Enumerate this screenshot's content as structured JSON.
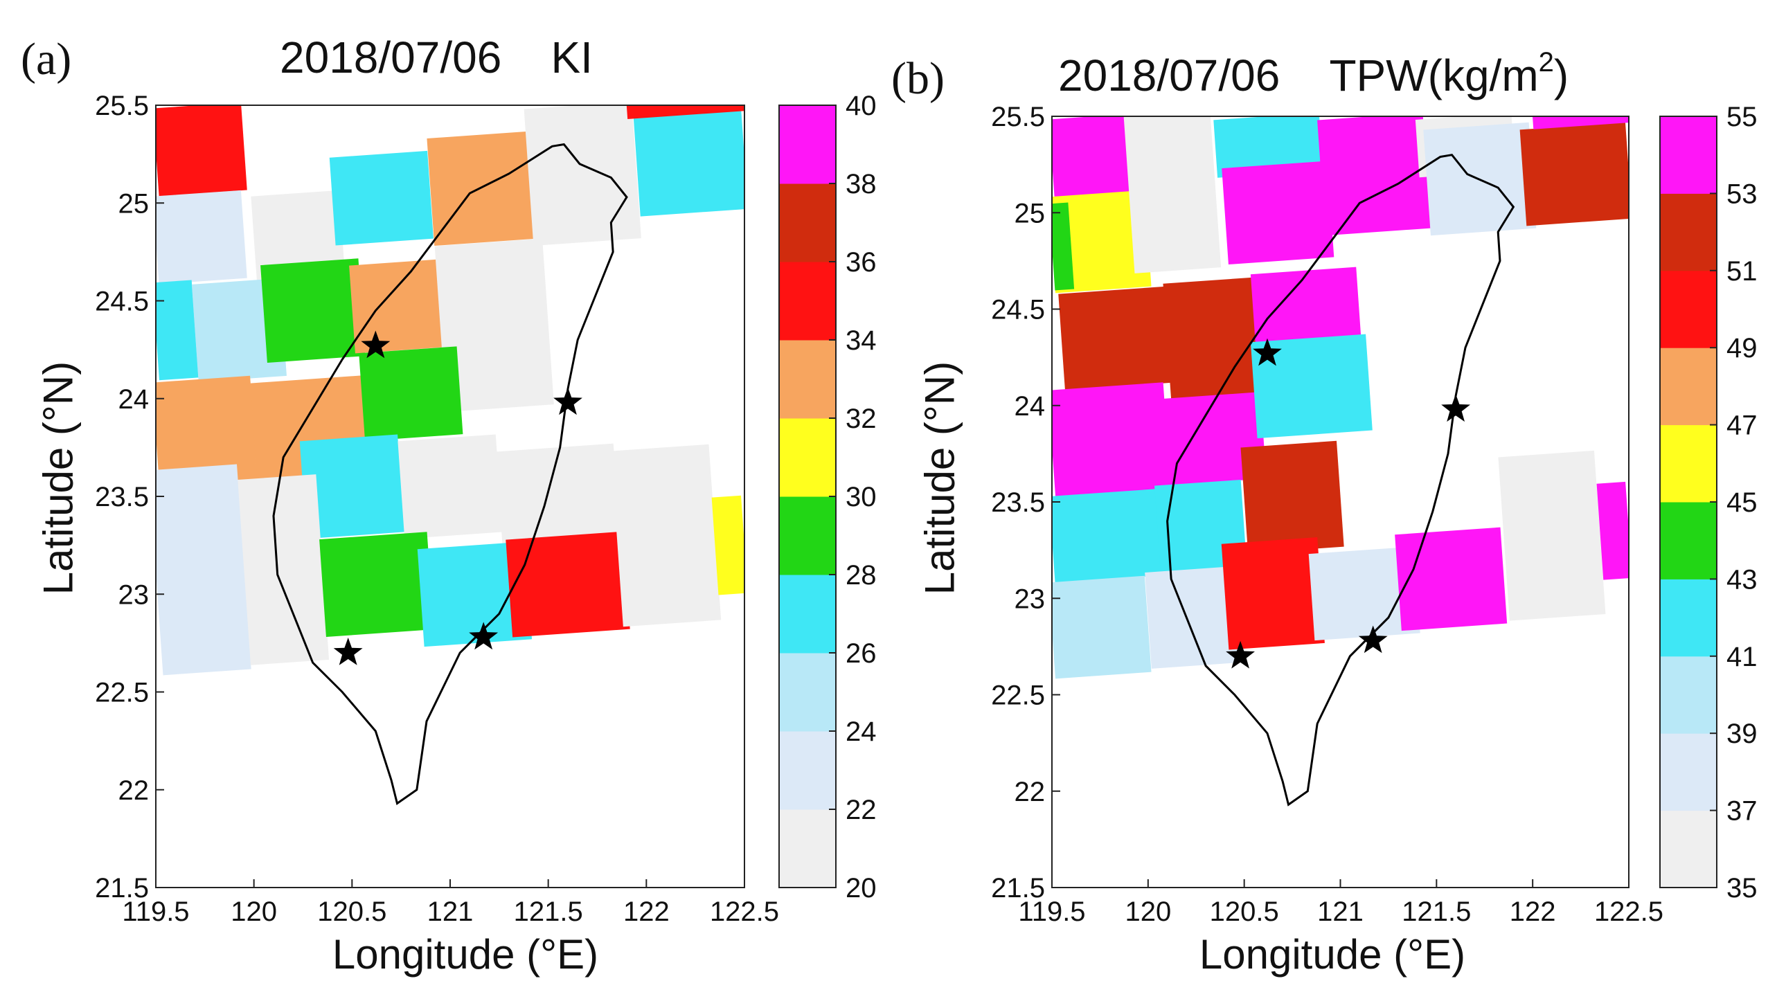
{
  "panels": [
    {
      "id": "a",
      "label": "(a)",
      "date": "2018/07/06",
      "variable": "KI",
      "unit_prefix": "",
      "unit_sup": "",
      "unit_suffix": "",
      "xlabel": "Longitude (°E)",
      "ylabel": "Latitude (°N)",
      "x_ticks": [
        "119.5",
        "120",
        "120.5",
        "121",
        "121.5",
        "122",
        "122.5"
      ],
      "y_ticks": [
        "21.5",
        "22",
        "22.5",
        "23",
        "23.5",
        "24",
        "24.5",
        "25",
        "25.5"
      ],
      "colorbar_ticks": [
        "20",
        "22",
        "24",
        "26",
        "28",
        "30",
        "32",
        "34",
        "36",
        "38",
        "40"
      ]
    },
    {
      "id": "b",
      "label": "(b)",
      "date": "2018/07/06",
      "variable": "TPW",
      "unit_prefix": "(kg/m",
      "unit_sup": "2",
      "unit_suffix": ")",
      "xlabel": "Longitude (°E)",
      "ylabel": "Latitude (°N)",
      "x_ticks": [
        "119.5",
        "120",
        "120.5",
        "121",
        "121.5",
        "122",
        "122.5"
      ],
      "y_ticks": [
        "21.5",
        "22",
        "22.5",
        "23",
        "23.5",
        "24",
        "24.5",
        "25",
        "25.5"
      ],
      "colorbar_ticks": [
        "35",
        "37",
        "39",
        "41",
        "43",
        "45",
        "47",
        "49",
        "51",
        "53",
        "55"
      ]
    }
  ],
  "chart_data": [
    {
      "type": "heatmap",
      "title": "2018/07/06 KI",
      "xlabel": "Longitude (°E)",
      "ylabel": "Latitude (°N)",
      "xlim": [
        119.5,
        122.5
      ],
      "ylim": [
        21.5,
        25.5
      ],
      "colorbar": {
        "range": [
          20,
          40
        ],
        "levels": [
          20,
          22,
          24,
          26,
          28,
          30,
          32,
          34,
          36,
          38,
          40
        ],
        "colors": [
          "#efefef",
          "#dce9f7",
          "#b8e8f7",
          "#3fe7f5",
          "#22d615",
          "#ffff1e",
          "#f7a55f",
          "#ff1212",
          "#d02c0e",
          "#ff16f7"
        ]
      },
      "cells": [
        {
          "lon": 119.5,
          "lat": 25.05,
          "w": 0.45,
          "h": 0.45,
          "value": 35
        },
        {
          "lon": 119.5,
          "lat": 24.6,
          "w": 0.45,
          "h": 0.45,
          "value": 23
        },
        {
          "lon": 120.0,
          "lat": 24.6,
          "w": 0.45,
          "h": 0.45,
          "value": 21
        },
        {
          "lon": 120.4,
          "lat": 24.8,
          "w": 0.5,
          "h": 0.45,
          "value": 27
        },
        {
          "lon": 120.9,
          "lat": 24.8,
          "w": 0.55,
          "h": 0.55,
          "value": 33
        },
        {
          "lon": 121.4,
          "lat": 24.8,
          "w": 0.55,
          "h": 0.7,
          "value": 21
        },
        {
          "lon": 121.95,
          "lat": 24.95,
          "w": 0.55,
          "h": 0.55,
          "value": 27
        },
        {
          "lon": 121.9,
          "lat": 25.45,
          "w": 0.6,
          "h": 0.1,
          "value": 35
        },
        {
          "lon": 119.5,
          "lat": 24.1,
          "w": 0.2,
          "h": 0.5,
          "value": 27
        },
        {
          "lon": 119.7,
          "lat": 24.1,
          "w": 0.45,
          "h": 0.5,
          "value": 25
        },
        {
          "lon": 120.05,
          "lat": 24.2,
          "w": 0.5,
          "h": 0.5,
          "value": 29
        },
        {
          "lon": 120.5,
          "lat": 24.25,
          "w": 0.55,
          "h": 0.45,
          "value": 33
        },
        {
          "lon": 120.95,
          "lat": 23.95,
          "w": 0.55,
          "h": 0.85,
          "value": 20.5
        },
        {
          "lon": 119.5,
          "lat": 23.55,
          "w": 0.5,
          "h": 0.55,
          "value": 33
        },
        {
          "lon": 120.0,
          "lat": 23.55,
          "w": 0.6,
          "h": 0.55,
          "value": 33
        },
        {
          "lon": 120.55,
          "lat": 23.8,
          "w": 0.5,
          "h": 0.45,
          "value": 29
        },
        {
          "lon": 120.25,
          "lat": 23.3,
          "w": 0.5,
          "h": 0.5,
          "value": 27
        },
        {
          "lon": 120.75,
          "lat": 23.3,
          "w": 0.5,
          "h": 0.5,
          "value": 20.5
        },
        {
          "lon": 121.25,
          "lat": 23.25,
          "w": 0.6,
          "h": 0.5,
          "value": 21
        },
        {
          "lon": 119.5,
          "lat": 22.6,
          "w": 0.45,
          "h": 1.05,
          "value": 23
        },
        {
          "lon": 119.95,
          "lat": 22.65,
          "w": 0.4,
          "h": 0.95,
          "value": 21
        },
        {
          "lon": 120.35,
          "lat": 22.8,
          "w": 0.55,
          "h": 0.5,
          "value": 29
        },
        {
          "lon": 120.85,
          "lat": 22.75,
          "w": 0.55,
          "h": 0.5,
          "value": 27
        },
        {
          "lon": 121.3,
          "lat": 22.8,
          "w": 0.6,
          "h": 0.5,
          "value": 35
        },
        {
          "lon": 121.85,
          "lat": 22.85,
          "w": 0.5,
          "h": 0.9,
          "value": 21
        },
        {
          "lon": 122.35,
          "lat": 23.0,
          "w": 0.15,
          "h": 0.5,
          "value": 31
        }
      ],
      "stations": [
        {
          "lon": 120.62,
          "lat": 24.27
        },
        {
          "lon": 121.6,
          "lat": 23.98
        },
        {
          "lon": 120.48,
          "lat": 22.7
        },
        {
          "lon": 121.17,
          "lat": 22.78
        }
      ]
    },
    {
      "type": "heatmap",
      "title": "2018/07/06 TPW(kg/m2)",
      "xlabel": "Longitude (°E)",
      "ylabel": "Latitude (°N)",
      "xlim": [
        119.5,
        122.5
      ],
      "ylim": [
        21.5,
        25.5
      ],
      "colorbar": {
        "range": [
          35,
          55
        ],
        "levels": [
          35,
          37,
          39,
          41,
          43,
          45,
          47,
          49,
          51,
          53,
          55
        ],
        "colors": [
          "#efefef",
          "#dce9f7",
          "#b8e8f7",
          "#3fe7f5",
          "#22d615",
          "#ffff1e",
          "#f7a55f",
          "#ff1212",
          "#d02c0e",
          "#ff16f7"
        ]
      },
      "cells": [
        {
          "lon": 119.5,
          "lat": 25.05,
          "w": 0.45,
          "h": 0.45,
          "value": 54
        },
        {
          "lon": 119.5,
          "lat": 24.6,
          "w": 0.5,
          "h": 0.5,
          "value": 46
        },
        {
          "lon": 119.9,
          "lat": 24.7,
          "w": 0.45,
          "h": 0.85,
          "value": 36
        },
        {
          "lon": 120.35,
          "lat": 25.2,
          "w": 0.55,
          "h": 0.3,
          "value": 42
        },
        {
          "lon": 120.9,
          "lat": 24.9,
          "w": 0.55,
          "h": 0.6,
          "value": 54
        },
        {
          "lon": 120.4,
          "lat": 24.75,
          "w": 0.55,
          "h": 0.5,
          "value": 54
        },
        {
          "lon": 121.4,
          "lat": 25.2,
          "w": 0.5,
          "h": 0.3,
          "value": 36
        },
        {
          "lon": 121.45,
          "lat": 24.9,
          "w": 0.55,
          "h": 0.55,
          "value": 38
        },
        {
          "lon": 121.95,
          "lat": 24.95,
          "w": 0.55,
          "h": 0.5,
          "value": 52
        },
        {
          "lon": 122.0,
          "lat": 25.45,
          "w": 0.5,
          "h": 0.1,
          "value": 54
        },
        {
          "lon": 119.5,
          "lat": 24.6,
          "w": 0.1,
          "h": 0.45,
          "value": 44
        },
        {
          "lon": 119.55,
          "lat": 24.1,
          "w": 0.6,
          "h": 0.5,
          "value": 52
        },
        {
          "lon": 120.1,
          "lat": 24.0,
          "w": 0.5,
          "h": 0.65,
          "value": 52
        },
        {
          "lon": 120.55,
          "lat": 24.2,
          "w": 0.55,
          "h": 0.5,
          "value": 54
        },
        {
          "lon": 119.5,
          "lat": 23.5,
          "w": 0.6,
          "h": 0.6,
          "value": 54
        },
        {
          "lon": 120.0,
          "lat": 23.6,
          "w": 0.6,
          "h": 0.45,
          "value": 54
        },
        {
          "lon": 120.55,
          "lat": 23.85,
          "w": 0.6,
          "h": 0.5,
          "value": 42
        },
        {
          "lon": 119.5,
          "lat": 23.1,
          "w": 0.6,
          "h": 0.45,
          "value": 42
        },
        {
          "lon": 120.05,
          "lat": 23.1,
          "w": 0.45,
          "h": 0.5,
          "value": 42
        },
        {
          "lon": 120.5,
          "lat": 23.25,
          "w": 0.5,
          "h": 0.55,
          "value": 52
        },
        {
          "lon": 119.5,
          "lat": 22.6,
          "w": 0.5,
          "h": 0.5,
          "value": 40
        },
        {
          "lon": 120.0,
          "lat": 22.65,
          "w": 0.45,
          "h": 0.5,
          "value": 38
        },
        {
          "lon": 120.4,
          "lat": 22.75,
          "w": 0.5,
          "h": 0.55,
          "value": 50
        },
        {
          "lon": 120.85,
          "lat": 22.8,
          "w": 0.55,
          "h": 0.45,
          "value": 38
        },
        {
          "lon": 121.3,
          "lat": 22.85,
          "w": 0.55,
          "h": 0.5,
          "value": 54
        },
        {
          "lon": 121.85,
          "lat": 22.9,
          "w": 0.5,
          "h": 0.85,
          "value": 36
        },
        {
          "lon": 122.35,
          "lat": 23.1,
          "w": 0.15,
          "h": 0.5,
          "value": 54
        }
      ],
      "stations": [
        {
          "lon": 120.62,
          "lat": 24.27
        },
        {
          "lon": 121.6,
          "lat": 23.98
        },
        {
          "lon": 120.48,
          "lat": 22.7
        },
        {
          "lon": 121.17,
          "lat": 22.78
        }
      ]
    }
  ]
}
